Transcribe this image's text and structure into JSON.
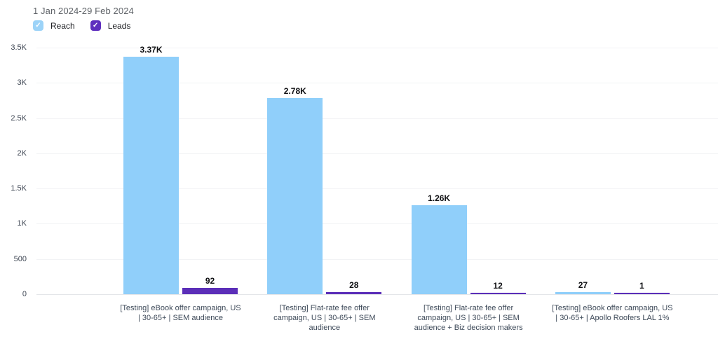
{
  "header": {
    "date_range": "1 Jan 2024-29 Feb 2024"
  },
  "icons": {
    "checkmark": "✓"
  },
  "legend": [
    {
      "label": "Reach",
      "checkbox_color": "#9cd3f8"
    },
    {
      "label": "Leads",
      "checkbox_color": "#5e2ebe"
    }
  ],
  "chart_data": {
    "type": "bar",
    "title": "1 Jan 2024-29 Feb 2024",
    "xlabel": "",
    "ylabel": "",
    "grid": true,
    "legend_position": "top-left",
    "ylim": [
      0,
      3500
    ],
    "yticks": [
      "0",
      "500",
      "1K",
      "1.5K",
      "2K",
      "2.5K",
      "3K",
      "3.5K"
    ],
    "ytick_values": [
      0,
      500,
      1000,
      1500,
      2000,
      2500,
      3000,
      3500
    ],
    "categories": [
      "[Testing] eBook offer campaign, US\n| 30-65+ | SEM audience",
      "[Testing] Flat-rate fee offer\ncampaign, US | 30-65+ | SEM\naudience",
      "[Testing] Flat-rate fee offer\ncampaign, US | 30-65+ | SEM\naudience + Biz decision makers",
      "[Testing] eBook offer campaign, US\n| 30-65+ | Apollo Roofers LAL 1%"
    ],
    "series": [
      {
        "name": "Reach",
        "color": "#90cffa",
        "values": [
          3370,
          2780,
          1260,
          27
        ],
        "labels": [
          "3.37K",
          "2.78K",
          "1.26K",
          "27"
        ]
      },
      {
        "name": "Leads",
        "color": "#5b2eb8",
        "values": [
          92,
          28,
          12,
          1
        ],
        "labels": [
          "92",
          "28",
          "12",
          "1"
        ]
      }
    ]
  }
}
